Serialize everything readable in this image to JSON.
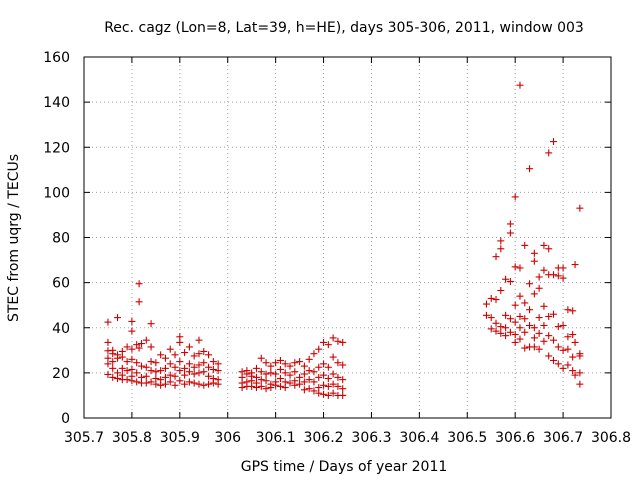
{
  "chart_data": {
    "type": "scatter",
    "title": "Rec. cagz (Lon=8, Lat=39, h=HE), days 305-306, 2011, window 003",
    "xlabel": "GPS time / Days of year 2011",
    "ylabel": "STEC from uqrg / TECUs",
    "xlim": [
      305.7,
      306.8
    ],
    "ylim": [
      0,
      160
    ],
    "x_ticks": [
      305.7,
      305.8,
      305.9,
      306.0,
      306.1,
      306.2,
      306.3,
      306.4,
      306.5,
      306.6,
      306.7,
      306.8
    ],
    "x_tick_labels": [
      "305.7",
      "305.8",
      "305.9",
      "306",
      "306.1",
      "306.2",
      "306.3",
      "306.4",
      "306.5",
      "306.6",
      "306.7",
      "306.8"
    ],
    "y_ticks": [
      0,
      20,
      40,
      60,
      80,
      100,
      120,
      140,
      160
    ],
    "y_tick_labels": [
      "0",
      "20",
      "40",
      "60",
      "80",
      "100",
      "120",
      "140",
      "160"
    ],
    "grid": true,
    "marker": "+",
    "marker_color": "#cc0000",
    "series": [
      {
        "name": "STEC",
        "points": [
          [
            305.75,
            42.5
          ],
          [
            305.75,
            33.5
          ],
          [
            305.75,
            29.8
          ],
          [
            305.75,
            26.5
          ],
          [
            305.75,
            24.0
          ],
          [
            305.75,
            19.3
          ],
          [
            305.76,
            30.0
          ],
          [
            305.76,
            28.5
          ],
          [
            305.76,
            25.0
          ],
          [
            305.76,
            22.0
          ],
          [
            305.76,
            18.0
          ],
          [
            305.77,
            44.5
          ],
          [
            305.77,
            28.0
          ],
          [
            305.77,
            26.5
          ],
          [
            305.77,
            20.0
          ],
          [
            305.77,
            17.5
          ],
          [
            305.78,
            29.5
          ],
          [
            305.78,
            27.0
          ],
          [
            305.78,
            22.0
          ],
          [
            305.78,
            19.0
          ],
          [
            305.78,
            17.0
          ],
          [
            305.79,
            31.5
          ],
          [
            305.79,
            25.0
          ],
          [
            305.79,
            21.0
          ],
          [
            305.79,
            17.0
          ],
          [
            305.8,
            42.8
          ],
          [
            305.8,
            38.5
          ],
          [
            305.8,
            30.5
          ],
          [
            305.8,
            26.0
          ],
          [
            305.8,
            21.5
          ],
          [
            305.8,
            18.5
          ],
          [
            305.8,
            16.5
          ],
          [
            305.81,
            32.5
          ],
          [
            305.81,
            24.5
          ],
          [
            305.81,
            20.0
          ],
          [
            305.81,
            16.0
          ],
          [
            305.815,
            59.5
          ],
          [
            305.815,
            51.5
          ],
          [
            305.815,
            31.0
          ],
          [
            305.82,
            33.0
          ],
          [
            305.82,
            23.0
          ],
          [
            305.82,
            18.0
          ],
          [
            305.82,
            15.5
          ],
          [
            305.83,
            34.5
          ],
          [
            305.83,
            22.5
          ],
          [
            305.83,
            18.5
          ],
          [
            305.83,
            15.5
          ],
          [
            305.84,
            41.8
          ],
          [
            305.84,
            31.5
          ],
          [
            305.84,
            25.0
          ],
          [
            305.84,
            21.0
          ],
          [
            305.84,
            16.0
          ],
          [
            305.85,
            24.5
          ],
          [
            305.85,
            20.5
          ],
          [
            305.85,
            17.5
          ],
          [
            305.85,
            15.0
          ],
          [
            305.86,
            28.0
          ],
          [
            305.86,
            21.0
          ],
          [
            305.86,
            17.0
          ],
          [
            305.86,
            14.5
          ],
          [
            305.87,
            26.5
          ],
          [
            305.87,
            22.0
          ],
          [
            305.87,
            18.0
          ],
          [
            305.87,
            15.0
          ],
          [
            305.88,
            30.5
          ],
          [
            305.88,
            24.0
          ],
          [
            305.88,
            19.0
          ],
          [
            305.88,
            16.0
          ],
          [
            305.89,
            28.0
          ],
          [
            305.89,
            22.5
          ],
          [
            305.89,
            18.5
          ],
          [
            305.89,
            14.5
          ],
          [
            305.9,
            36.0
          ],
          [
            305.9,
            33.5
          ],
          [
            305.9,
            25.0
          ],
          [
            305.9,
            21.0
          ],
          [
            305.9,
            16.5
          ],
          [
            305.91,
            29.0
          ],
          [
            305.91,
            22.0
          ],
          [
            305.91,
            19.0
          ],
          [
            305.91,
            15.0
          ],
          [
            305.92,
            31.5
          ],
          [
            305.92,
            24.0
          ],
          [
            305.92,
            20.5
          ],
          [
            305.92,
            16.0
          ],
          [
            305.93,
            27.5
          ],
          [
            305.93,
            22.5
          ],
          [
            305.93,
            19.5
          ],
          [
            305.93,
            15.5
          ],
          [
            305.94,
            34.5
          ],
          [
            305.94,
            28.5
          ],
          [
            305.94,
            23.5
          ],
          [
            305.94,
            20.0
          ],
          [
            305.94,
            15.0
          ],
          [
            305.95,
            29.5
          ],
          [
            305.95,
            24.5
          ],
          [
            305.95,
            20.5
          ],
          [
            305.95,
            14.5
          ],
          [
            305.96,
            28.0
          ],
          [
            305.96,
            22.5
          ],
          [
            305.96,
            18.5
          ],
          [
            305.96,
            15.0
          ],
          [
            305.97,
            25.0
          ],
          [
            305.97,
            21.5
          ],
          [
            305.97,
            17.5
          ],
          [
            305.97,
            15.5
          ],
          [
            305.98,
            24.0
          ],
          [
            305.98,
            21.0
          ],
          [
            305.98,
            17.0
          ],
          [
            305.98,
            15.0
          ],
          [
            306.03,
            20.5
          ],
          [
            306.03,
            18.0
          ],
          [
            306.03,
            15.5
          ],
          [
            306.03,
            13.5
          ],
          [
            306.04,
            21.0
          ],
          [
            306.04,
            19.5
          ],
          [
            306.04,
            16.0
          ],
          [
            306.04,
            14.0
          ],
          [
            306.05,
            20.0
          ],
          [
            306.05,
            18.5
          ],
          [
            306.05,
            16.5
          ],
          [
            306.05,
            14.0
          ],
          [
            306.06,
            22.0
          ],
          [
            306.06,
            18.0
          ],
          [
            306.06,
            15.5
          ],
          [
            306.06,
            13.5
          ],
          [
            306.07,
            26.5
          ],
          [
            306.07,
            20.5
          ],
          [
            306.07,
            17.0
          ],
          [
            306.07,
            14.0
          ],
          [
            306.08,
            24.5
          ],
          [
            306.08,
            19.5
          ],
          [
            306.08,
            16.5
          ],
          [
            306.08,
            13.0
          ],
          [
            306.09,
            23.0
          ],
          [
            306.09,
            20.0
          ],
          [
            306.09,
            15.0
          ],
          [
            306.09,
            13.5
          ],
          [
            306.1,
            24.5
          ],
          [
            306.1,
            19.5
          ],
          [
            306.1,
            16.0
          ],
          [
            306.1,
            14.5
          ],
          [
            306.11,
            25.5
          ],
          [
            306.11,
            21.5
          ],
          [
            306.11,
            17.5
          ],
          [
            306.11,
            14.0
          ],
          [
            306.12,
            24.0
          ],
          [
            306.12,
            20.0
          ],
          [
            306.12,
            16.0
          ],
          [
            306.12,
            13.5
          ],
          [
            306.13,
            23.0
          ],
          [
            306.13,
            19.0
          ],
          [
            306.13,
            15.5
          ],
          [
            306.14,
            24.5
          ],
          [
            306.14,
            20.5
          ],
          [
            306.14,
            16.5
          ],
          [
            306.14,
            14.5
          ],
          [
            306.15,
            25.0
          ],
          [
            306.15,
            18.0
          ],
          [
            306.15,
            15.0
          ],
          [
            306.16,
            23.0
          ],
          [
            306.16,
            19.5
          ],
          [
            306.16,
            16.0
          ],
          [
            306.16,
            12.5
          ],
          [
            306.17,
            26.0
          ],
          [
            306.17,
            21.0
          ],
          [
            306.17,
            17.0
          ],
          [
            306.17,
            13.0
          ],
          [
            306.18,
            28.5
          ],
          [
            306.18,
            20.5
          ],
          [
            306.18,
            16.0
          ],
          [
            306.18,
            12.0
          ],
          [
            306.19,
            30.5
          ],
          [
            306.19,
            22.5
          ],
          [
            306.19,
            18.0
          ],
          [
            306.19,
            13.5
          ],
          [
            306.19,
            11.0
          ],
          [
            306.2,
            33.5
          ],
          [
            306.2,
            24.0
          ],
          [
            306.2,
            19.0
          ],
          [
            306.2,
            14.5
          ],
          [
            306.2,
            10.5
          ],
          [
            306.21,
            32.5
          ],
          [
            306.21,
            22.5
          ],
          [
            306.21,
            17.5
          ],
          [
            306.21,
            14.0
          ],
          [
            306.21,
            10.0
          ],
          [
            306.22,
            35.5
          ],
          [
            306.22,
            27.0
          ],
          [
            306.22,
            19.5
          ],
          [
            306.22,
            15.0
          ],
          [
            306.22,
            11.0
          ],
          [
            306.23,
            34.0
          ],
          [
            306.23,
            24.5
          ],
          [
            306.23,
            18.0
          ],
          [
            306.23,
            14.0
          ],
          [
            306.23,
            10.0
          ],
          [
            306.24,
            33.5
          ],
          [
            306.24,
            23.5
          ],
          [
            306.24,
            17.0
          ],
          [
            306.24,
            13.0
          ],
          [
            306.24,
            10.0
          ],
          [
            306.54,
            50.5
          ],
          [
            306.54,
            45.5
          ],
          [
            306.55,
            53.0
          ],
          [
            306.55,
            44.5
          ],
          [
            306.55,
            39.5
          ],
          [
            306.56,
            71.5
          ],
          [
            306.56,
            52.5
          ],
          [
            306.56,
            42.0
          ],
          [
            306.56,
            38.5
          ],
          [
            306.57,
            78.5
          ],
          [
            306.57,
            75.0
          ],
          [
            306.57,
            56.5
          ],
          [
            306.57,
            40.5
          ],
          [
            306.57,
            37.5
          ],
          [
            306.58,
            61.5
          ],
          [
            306.58,
            45.5
          ],
          [
            306.58,
            40.0
          ],
          [
            306.58,
            36.5
          ],
          [
            306.59,
            86.0
          ],
          [
            306.59,
            82.0
          ],
          [
            306.59,
            60.5
          ],
          [
            306.59,
            44.0
          ],
          [
            306.59,
            38.0
          ],
          [
            306.6,
            98.0
          ],
          [
            306.6,
            67.0
          ],
          [
            306.6,
            50.0
          ],
          [
            306.6,
            42.5
          ],
          [
            306.6,
            37.0
          ],
          [
            306.6,
            33.5
          ],
          [
            306.61,
            147.5
          ],
          [
            306.61,
            66.5
          ],
          [
            306.61,
            54.0
          ],
          [
            306.61,
            45.0
          ],
          [
            306.61,
            40.0
          ],
          [
            306.61,
            35.0
          ],
          [
            306.62,
            76.5
          ],
          [
            306.62,
            51.0
          ],
          [
            306.62,
            44.0
          ],
          [
            306.62,
            38.0
          ],
          [
            306.62,
            31.0
          ],
          [
            306.63,
            110.5
          ],
          [
            306.63,
            59.5
          ],
          [
            306.63,
            48.0
          ],
          [
            306.63,
            41.0
          ],
          [
            306.63,
            31.5
          ],
          [
            306.64,
            73.0
          ],
          [
            306.64,
            69.5
          ],
          [
            306.64,
            55.0
          ],
          [
            306.64,
            40.0
          ],
          [
            306.64,
            35.5
          ],
          [
            306.64,
            31.5
          ],
          [
            306.65,
            62.5
          ],
          [
            306.65,
            57.5
          ],
          [
            306.65,
            44.5
          ],
          [
            306.65,
            37.5
          ],
          [
            306.65,
            30.5
          ],
          [
            306.66,
            76.5
          ],
          [
            306.66,
            65.5
          ],
          [
            306.66,
            49.5
          ],
          [
            306.66,
            41.0
          ],
          [
            306.66,
            34.0
          ],
          [
            306.67,
            117.5
          ],
          [
            306.67,
            75.0
          ],
          [
            306.67,
            63.5
          ],
          [
            306.67,
            45.0
          ],
          [
            306.67,
            36.5
          ],
          [
            306.67,
            27.5
          ],
          [
            306.68,
            122.5
          ],
          [
            306.68,
            63.5
          ],
          [
            306.68,
            46.0
          ],
          [
            306.68,
            34.5
          ],
          [
            306.68,
            25.5
          ],
          [
            306.69,
            66.5
          ],
          [
            306.69,
            63.0
          ],
          [
            306.69,
            40.5
          ],
          [
            306.69,
            31.5
          ],
          [
            306.69,
            24.0
          ],
          [
            306.7,
            66.5
          ],
          [
            306.7,
            62.0
          ],
          [
            306.7,
            41.0
          ],
          [
            306.7,
            30.0
          ],
          [
            306.7,
            22.0
          ],
          [
            306.71,
            48.0
          ],
          [
            306.71,
            36.0
          ],
          [
            306.71,
            30.5
          ],
          [
            306.71,
            23.5
          ],
          [
            306.72,
            47.5
          ],
          [
            306.72,
            37.0
          ],
          [
            306.72,
            27.0
          ],
          [
            306.72,
            21.0
          ],
          [
            306.725,
            68.0
          ],
          [
            306.725,
            33.5
          ],
          [
            306.725,
            19.0
          ],
          [
            306.735,
            93.0
          ],
          [
            306.735,
            28.5
          ],
          [
            306.735,
            27.5
          ],
          [
            306.735,
            20.0
          ],
          [
            306.735,
            15.0
          ]
        ]
      }
    ]
  }
}
